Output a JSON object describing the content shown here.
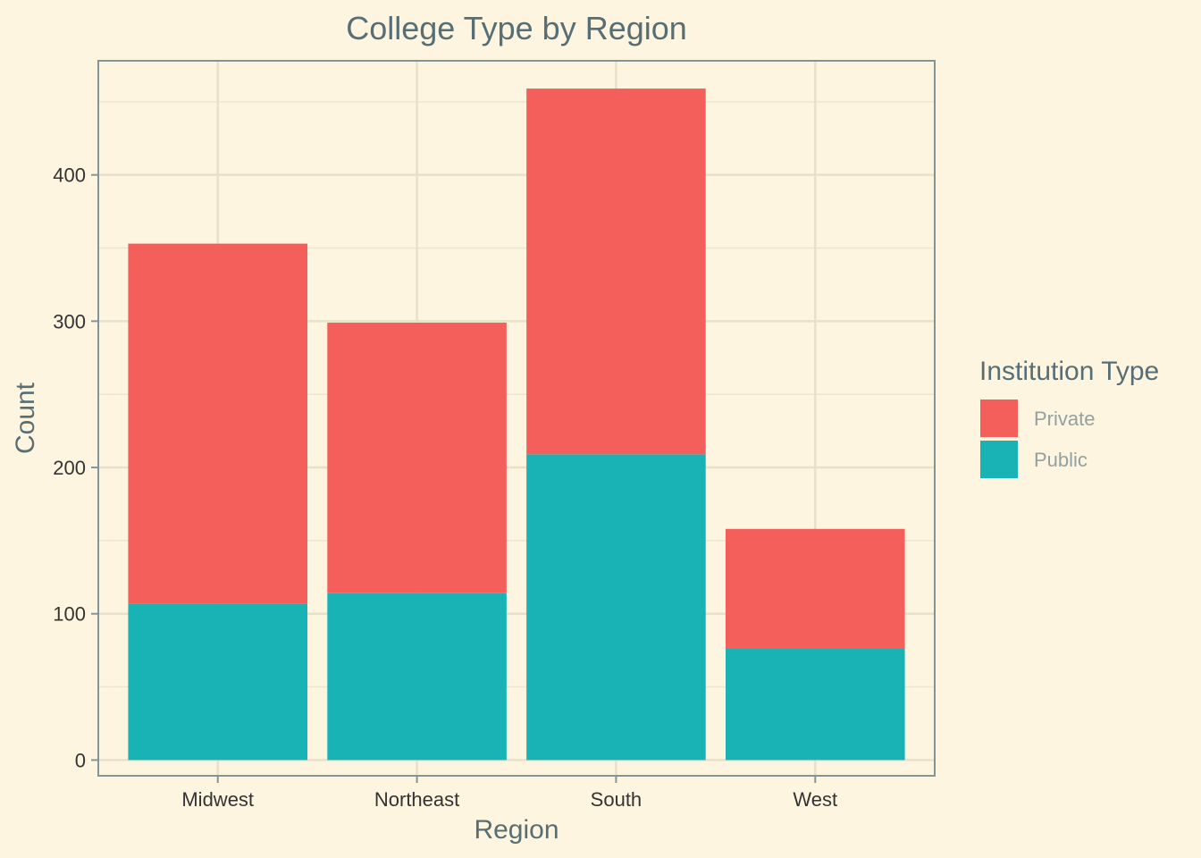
{
  "chart_data": {
    "type": "bar",
    "stacked": true,
    "title": "College Type by Region",
    "xlabel": "Region",
    "ylabel": "Count",
    "categories": [
      "Midwest",
      "Northeast",
      "South",
      "West"
    ],
    "series": [
      {
        "name": "Public",
        "values": [
          107,
          114,
          209,
          76
        ],
        "color": "#19b3b6"
      },
      {
        "name": "Private",
        "values": [
          246,
          185,
          250,
          82
        ],
        "color": "#f45f5b"
      }
    ],
    "ylim": [
      0,
      478
    ],
    "yticks": [
      0,
      100,
      200,
      300,
      400
    ],
    "grid": true,
    "legend": {
      "title": "Institution Type",
      "placement": "right",
      "order": [
        "Private",
        "Public"
      ]
    }
  }
}
